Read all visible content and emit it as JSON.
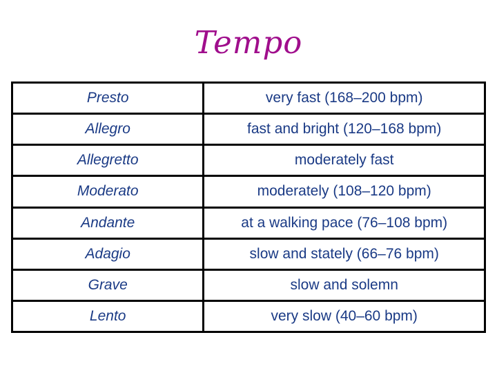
{
  "colors": {
    "title-color": "#a00e8c",
    "text-color": "#1a3a85",
    "border-color": "#000000",
    "background": "#ffffff"
  },
  "slide": {
    "title": "Tempo"
  },
  "table": {
    "rows": [
      {
        "term": "Presto",
        "definition": "very fast (168–200 bpm)"
      },
      {
        "term": "Allegro",
        "definition": "fast and bright (120–168 bpm)"
      },
      {
        "term": "Allegretto",
        "definition": "moderately fast"
      },
      {
        "term": "Moderato",
        "definition": "moderately (108–120 bpm)"
      },
      {
        "term": "Andante",
        "definition": "at a walking pace (76–108 bpm)"
      },
      {
        "term": "Adagio",
        "definition": "slow and stately (66–76 bpm)"
      },
      {
        "term": "Grave",
        "definition": "slow and solemn"
      },
      {
        "term": "Lento",
        "definition": "very slow (40–60 bpm)"
      }
    ]
  }
}
